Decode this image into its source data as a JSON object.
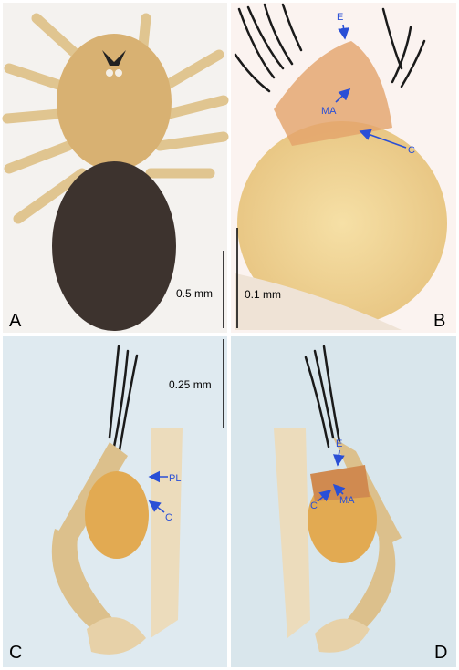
{
  "panels": [
    {
      "label": "A",
      "scale_bar": "0.5 mm",
      "annotations": []
    },
    {
      "label": "B",
      "scale_bar": "0.1 mm",
      "annotations": [
        "E",
        "MA",
        "C"
      ]
    },
    {
      "label": "C",
      "scale_bar": "0.25 mm",
      "annotations": [
        "PL",
        "C"
      ]
    },
    {
      "label": "D",
      "annotations": [
        "E",
        "C",
        "MA"
      ]
    }
  ]
}
